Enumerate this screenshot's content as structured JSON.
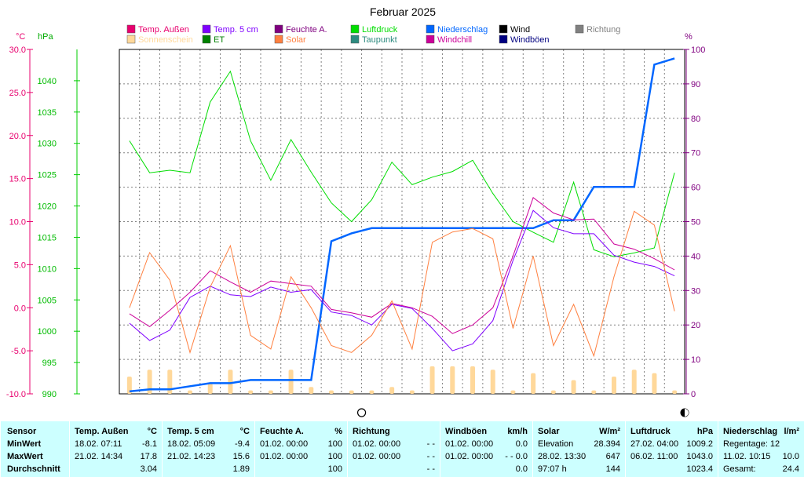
{
  "chart_data": {
    "type": "line",
    "title": "Februar 2025",
    "axes": {
      "temp_unit": "°C",
      "press_unit": "hPa",
      "pct_unit": "%",
      "temp_ticks": [
        "30.0",
        "25.0",
        "20.0",
        "15.0",
        "10.0",
        "5.0",
        "0.0",
        "-5.0",
        "-10.0"
      ],
      "press_ticks": [
        "1040",
        "1035",
        "1030",
        "1025",
        "1020",
        "1015",
        "1010",
        "1005",
        "1000",
        "995",
        "990"
      ],
      "pct_ticks": [
        "100",
        "90",
        "80",
        "70",
        "60",
        "50",
        "40",
        "30",
        "20",
        "10",
        "0"
      ]
    },
    "legend": [
      {
        "label": "Temp. Außen",
        "color": "#e8006e"
      },
      {
        "label": "Temp. 5 cm",
        "color": "#7f00ff"
      },
      {
        "label": "Feuchte A.",
        "color": "#800080"
      },
      {
        "label": "Luftdruck",
        "color": "#00dd00"
      },
      {
        "label": "Niederschlag",
        "color": "#0066ff"
      },
      {
        "label": "Wind",
        "color": "#000000"
      },
      {
        "label": "Richtung",
        "color": "#808080"
      },
      {
        "label": "Sonnenschein",
        "color": "#ffd89a"
      },
      {
        "label": "ET",
        "color": "#008000"
      },
      {
        "label": "Solar",
        "color": "#ff8040"
      },
      {
        "label": "Taupunkt",
        "color": "#2e8b80"
      },
      {
        "label": "Windchill",
        "color": "#cc0099"
      },
      {
        "label": "Windböen",
        "color": "#000080"
      }
    ],
    "series": [
      {
        "name": "Luftdruck",
        "color": "#00dd00",
        "axis": "press",
        "values": [
          1030.4,
          1025.3,
          1025.7,
          1025.3,
          1036.6,
          1041.5,
          1030.4,
          1024.1,
          1030.6,
          1025.4,
          1020.5,
          1017.5,
          1021.0,
          1027.0,
          1023.4,
          1024.6,
          1025.5,
          1027.3,
          1022.0,
          1017.5,
          1015.8,
          1014.2,
          1023.8,
          1013.0,
          1011.9,
          1012.5,
          1013.3,
          1025.3
        ]
      },
      {
        "name": "Niederschlag",
        "color": "#0066ff",
        "axis": "pct",
        "values": [
          0.7,
          1.3,
          1.3,
          2.2,
          3.1,
          3.1,
          4.0,
          4.0,
          4.0,
          4.0,
          44.3,
          46.6,
          48.1,
          48.1,
          48.1,
          48.1,
          48.1,
          48.1,
          48.1,
          48.1,
          48.1,
          50.4,
          50.4,
          60.1,
          60.1,
          60.1,
          95.6,
          97.4
        ]
      },
      {
        "name": "Temp. Außen",
        "color": "#cc0099",
        "axis": "temp",
        "values": [
          -0.7,
          -2.2,
          -0.3,
          1.8,
          4.3,
          3.0,
          1.8,
          3.1,
          2.8,
          2.5,
          -0.2,
          -0.6,
          -1.1,
          0.5,
          0.0,
          -1.0,
          -3.0,
          -2.0,
          0.0,
          6.0,
          12.8,
          11.0,
          10.2,
          10.3,
          7.4,
          6.8,
          5.7,
          4.4
        ]
      },
      {
        "name": "Temp. 5 cm",
        "color": "#7f00ff",
        "axis": "temp",
        "values": [
          -1.8,
          -3.8,
          -2.6,
          1.2,
          2.5,
          1.5,
          1.3,
          2.4,
          1.8,
          2.1,
          -0.5,
          -0.9,
          -2.0,
          0.4,
          -0.1,
          -2.4,
          -5.0,
          -4.2,
          -1.5,
          5.5,
          11.3,
          9.3,
          8.6,
          8.6,
          6.1,
          5.3,
          4.8,
          3.7
        ]
      },
      {
        "name": "Solar",
        "color": "#ff8040",
        "axis": "pct",
        "values": [
          25,
          41,
          33,
          12,
          31,
          43,
          17,
          13,
          34,
          25,
          14,
          12,
          17,
          27,
          13,
          44,
          47,
          48,
          45,
          19,
          40,
          14,
          26,
          11,
          34,
          53,
          49,
          24
        ]
      }
    ],
    "sunshine_bars": [
      5,
      7,
      7,
      1,
      3,
      7,
      1,
      1,
      7,
      2,
      1,
      1,
      1,
      2,
      1,
      8,
      8,
      8,
      7,
      1,
      6,
      1,
      4,
      1,
      5,
      7,
      6,
      1
    ],
    "markers": [
      {
        "index": 11,
        "shape": "hollow"
      },
      {
        "index": 27,
        "shape": "half"
      }
    ]
  },
  "stats": {
    "sensor": {
      "title": "Sensor",
      "rows": [
        "MinWert",
        "MaxWert",
        "Durchschnitt"
      ]
    },
    "columns": [
      {
        "title": "Temp. Außen",
        "unit": "°C",
        "rows": [
          [
            "18.02.  07:11",
            "-8.1"
          ],
          [
            "21.02.  14:34",
            "17.8"
          ],
          [
            "",
            "3.04"
          ]
        ]
      },
      {
        "title": "Temp. 5 cm",
        "unit": "°C",
        "rows": [
          [
            "18.02.  05:09",
            "-9.4"
          ],
          [
            "21.02.  14:23",
            "15.6"
          ],
          [
            "",
            "1.89"
          ]
        ]
      },
      {
        "title": "Feuchte A.",
        "unit": "%",
        "rows": [
          [
            "01.02.  00:00",
            "100"
          ],
          [
            "01.02.  00:00",
            "100"
          ],
          [
            "",
            "100"
          ]
        ]
      },
      {
        "title": "Richtung",
        "unit": "",
        "rows": [
          [
            "01.02.  00:00",
            "- -"
          ],
          [
            "01.02.  00:00",
            "- -"
          ],
          [
            "",
            "- -"
          ]
        ]
      },
      {
        "title": "Windböen",
        "unit": "km/h",
        "rows": [
          [
            "01.02.  00:00",
            "0.0"
          ],
          [
            "01.02.  00:00",
            "- - 0.0"
          ],
          [
            "",
            "0.0"
          ]
        ]
      },
      {
        "title": "Solar",
        "unit": "W/m²",
        "rows": [
          [
            "Elevation",
            "28.394"
          ],
          [
            "28.02.  13:30",
            "647"
          ],
          [
            "97:07 h",
            "144"
          ]
        ]
      },
      {
        "title": "Luftdruck",
        "unit": "hPa",
        "rows": [
          [
            "27.02.  04:00",
            "1009.2"
          ],
          [
            "06.02.  11:00",
            "1043.0"
          ],
          [
            "",
            "1023.4"
          ]
        ]
      },
      {
        "title": "Niederschlag",
        "unit": "l/m²",
        "rows": [
          [
            "Regentage: 12",
            ""
          ],
          [
            "11.02.  10:15",
            "10.0"
          ],
          [
            "Gesamt:",
            "24.4"
          ]
        ]
      }
    ]
  }
}
